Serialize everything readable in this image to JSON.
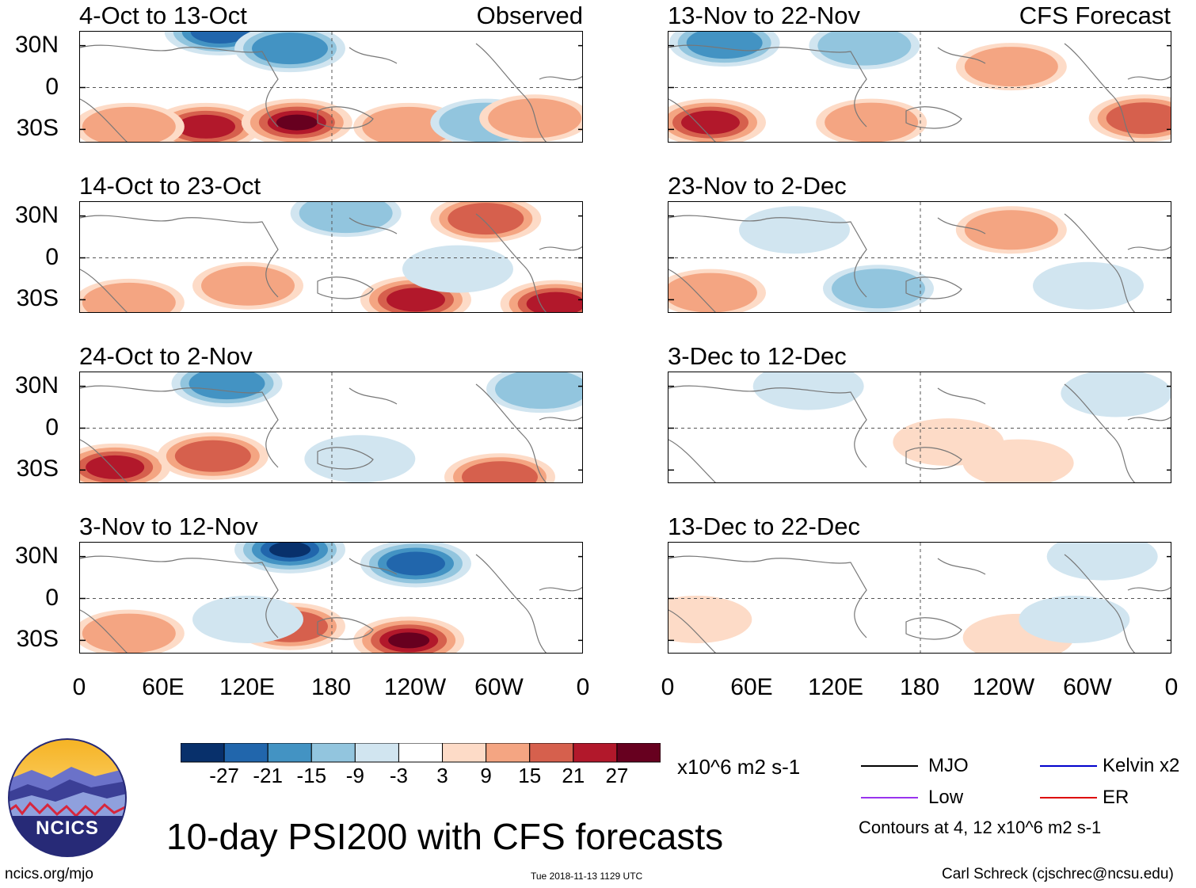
{
  "figure_title": "10-day PSI200 with CFS forecasts",
  "observed_label": "Observed",
  "forecast_label": "CFS Forecast",
  "chart_data": [
    {
      "type": "heatmap",
      "column": "observed",
      "title": "4-Oct to 13-Oct",
      "anomalies": [
        {
          "lon": 100,
          "lat": 40,
          "v": -22
        },
        {
          "lon": 150,
          "lat": 28,
          "v": -16
        },
        {
          "lon": 90,
          "lat": -28,
          "v": 25
        },
        {
          "lon": 155,
          "lat": -25,
          "v": 29
        },
        {
          "lon": 35,
          "lat": -28,
          "v": 14
        },
        {
          "lon": 235,
          "lat": -28,
          "v": 10
        },
        {
          "lon": 290,
          "lat": -25,
          "v": -12
        },
        {
          "lon": 325,
          "lat": -22,
          "v": 12
        }
      ]
    },
    {
      "type": "heatmap",
      "column": "observed",
      "title": "14-Oct to 23-Oct",
      "anomalies": [
        {
          "lon": 190,
          "lat": 32,
          "v": -10
        },
        {
          "lon": 290,
          "lat": 28,
          "v": 18
        },
        {
          "lon": 35,
          "lat": -32,
          "v": 14
        },
        {
          "lon": 240,
          "lat": -30,
          "v": 22
        },
        {
          "lon": 340,
          "lat": -33,
          "v": 24
        },
        {
          "lon": 270,
          "lat": -8,
          "v": -8
        },
        {
          "lon": 120,
          "lat": -20,
          "v": 10
        }
      ]
    },
    {
      "type": "heatmap",
      "column": "observed",
      "title": "24-Oct to 2-Nov",
      "anomalies": [
        {
          "lon": 105,
          "lat": 32,
          "v": -18
        },
        {
          "lon": 330,
          "lat": 28,
          "v": -14
        },
        {
          "lon": 25,
          "lat": -28,
          "v": 24
        },
        {
          "lon": 95,
          "lat": -20,
          "v": 18
        },
        {
          "lon": 200,
          "lat": -22,
          "v": -8
        },
        {
          "lon": 300,
          "lat": -35,
          "v": 16
        }
      ]
    },
    {
      "type": "heatmap",
      "column": "observed",
      "title": "3-Nov to 12-Nov",
      "anomalies": [
        {
          "lon": 150,
          "lat": 35,
          "v": -29
        },
        {
          "lon": 240,
          "lat": 25,
          "v": -22
        },
        {
          "lon": 35,
          "lat": -25,
          "v": 12
        },
        {
          "lon": 150,
          "lat": -20,
          "v": 16
        },
        {
          "lon": 235,
          "lat": -30,
          "v": 29
        },
        {
          "lon": 120,
          "lat": -15,
          "v": -8
        }
      ]
    },
    {
      "type": "heatmap",
      "column": "forecast",
      "title": "13-Nov to 22-Nov",
      "anomalies": [
        {
          "lon": 40,
          "lat": 32,
          "v": -16
        },
        {
          "lon": 140,
          "lat": 30,
          "v": -10
        },
        {
          "lon": 30,
          "lat": -25,
          "v": 24
        },
        {
          "lon": 145,
          "lat": -25,
          "v": 14
        },
        {
          "lon": 340,
          "lat": -22,
          "v": 20
        },
        {
          "lon": 245,
          "lat": 15,
          "v": 12
        }
      ]
    },
    {
      "type": "heatmap",
      "column": "forecast",
      "title": "23-Nov to 2-Dec",
      "anomalies": [
        {
          "lon": 245,
          "lat": 20,
          "v": 12
        },
        {
          "lon": 30,
          "lat": -25,
          "v": 14
        },
        {
          "lon": 150,
          "lat": -22,
          "v": -10
        },
        {
          "lon": 90,
          "lat": 20,
          "v": -8
        },
        {
          "lon": 300,
          "lat": -20,
          "v": -8
        }
      ]
    },
    {
      "type": "heatmap",
      "column": "forecast",
      "title": "3-Dec to 12-Dec",
      "anomalies": [
        {
          "lon": 100,
          "lat": 30,
          "v": -8
        },
        {
          "lon": 200,
          "lat": -10,
          "v": 8
        },
        {
          "lon": 250,
          "lat": -25,
          "v": 8
        },
        {
          "lon": 320,
          "lat": 25,
          "v": -6
        }
      ]
    },
    {
      "type": "heatmap",
      "column": "forecast",
      "title": "13-Dec to 22-Dec",
      "anomalies": [
        {
          "lon": 20,
          "lat": -15,
          "v": 6
        },
        {
          "lon": 250,
          "lat": -28,
          "v": 8
        },
        {
          "lon": 290,
          "lat": -15,
          "v": -6
        },
        {
          "lon": 310,
          "lat": 30,
          "v": -6
        }
      ]
    }
  ],
  "y_tick_labels": [
    "30N",
    "0",
    "30S"
  ],
  "x_tick_labels": [
    "0",
    "60E",
    "120E",
    "180",
    "120W",
    "60W",
    "0"
  ],
  "x_lon_values": [
    0,
    60,
    120,
    180,
    240,
    300,
    360
  ],
  "y_lat_values": [
    30,
    0,
    -30
  ],
  "lat_range": [
    -40,
    40
  ],
  "lon_range": [
    0,
    360
  ],
  "colorbar": {
    "tick_labels": [
      "-27",
      "-21",
      "-15",
      "-9",
      "-3",
      "3",
      "9",
      "15",
      "21",
      "27"
    ],
    "levels": [
      -27,
      -21,
      -15,
      -9,
      -3,
      3,
      9,
      15,
      21,
      27
    ],
    "colors": [
      "#08306b",
      "#2166ac",
      "#4393c3",
      "#92c5de",
      "#d1e5f0",
      "#ffffff",
      "#fddbc7",
      "#f4a582",
      "#d6604d",
      "#b2182b",
      "#67001f"
    ],
    "units": "x10^6 m2 s-1"
  },
  "legend": {
    "items": [
      {
        "label": "MJO",
        "color": "#000000"
      },
      {
        "label": "Kelvin x2",
        "color": "#0000cc"
      },
      {
        "label": "Low",
        "color": "#9933ee"
      },
      {
        "label": "ER",
        "color": "#dd0000"
      }
    ],
    "contours_note": "Contours at 4, 12 x10^6 m2 s-1"
  },
  "logo_text": "NCICS",
  "footer": {
    "url": "ncics.org/mjo",
    "timestamp": "Tue 2018-11-13 1129 UTC",
    "author": "Carl Schreck (cjschrec@ncsu.edu)"
  }
}
